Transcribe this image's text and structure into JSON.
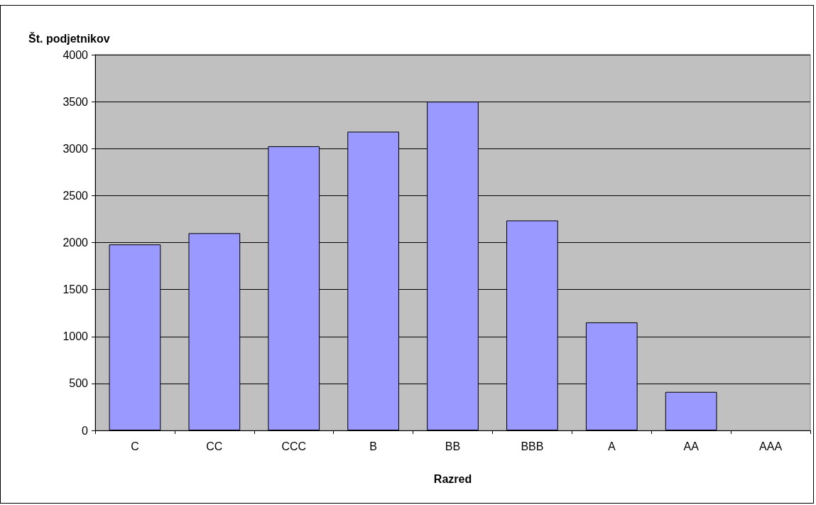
{
  "chart_data": {
    "type": "bar",
    "ylabel": "Št. podjetnikov",
    "xlabel": "Razred",
    "categories": [
      "C",
      "CC",
      "CCC",
      "B",
      "BB",
      "BBB",
      "A",
      "AA",
      "AAA"
    ],
    "values": [
      1980,
      2100,
      3025,
      3180,
      3500,
      2235,
      1150,
      410,
      null
    ],
    "color": "#9999ff",
    "ylim": [
      0,
      4000
    ],
    "yticks": [
      0,
      500,
      1000,
      1500,
      2000,
      2500,
      3000,
      3500,
      4000
    ],
    "grid": "y"
  }
}
